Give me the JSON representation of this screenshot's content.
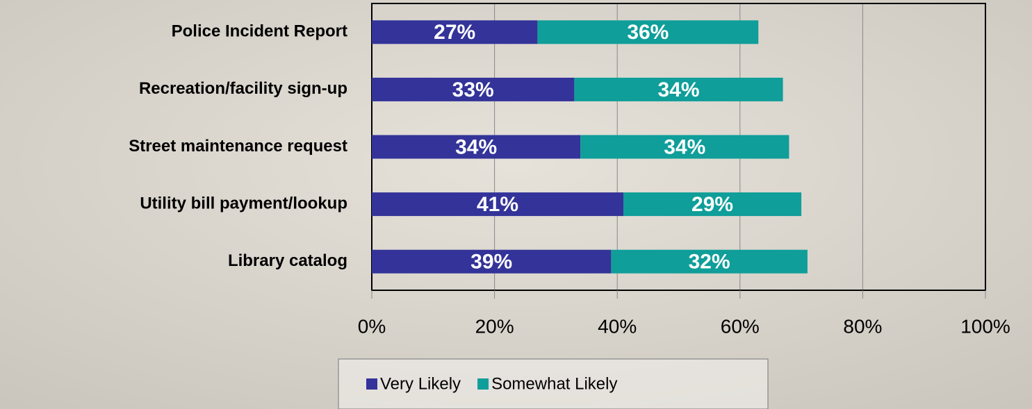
{
  "chart_data": {
    "type": "stacked-bar",
    "categories": [
      "Police Incident Report",
      "Recreation/facility sign-up",
      "Street maintenance request",
      "Utility bill payment/lookup",
      "Library catalog"
    ],
    "series": [
      {
        "name": "Very Likely",
        "color": "#333399",
        "values": [
          27,
          33,
          34,
          41,
          39
        ],
        "value_labels": [
          "27%",
          "33%",
          "34%",
          "41%",
          "39%"
        ]
      },
      {
        "name": "Somewhat Likely",
        "color": "#0f9e99",
        "values": [
          36,
          34,
          34,
          29,
          32
        ],
        "value_labels": [
          "36%",
          "34%",
          "34%",
          "29%",
          "32%"
        ]
      }
    ],
    "xlim": [
      0,
      100
    ],
    "xticks": [
      {
        "value": 0,
        "label": "0%"
      },
      {
        "value": 20,
        "label": "20%"
      },
      {
        "value": 40,
        "label": "40%"
      },
      {
        "value": 60,
        "label": "60%"
      },
      {
        "value": 80,
        "label": "80%"
      },
      {
        "value": 100,
        "label": "100%"
      }
    ],
    "grid": true
  }
}
